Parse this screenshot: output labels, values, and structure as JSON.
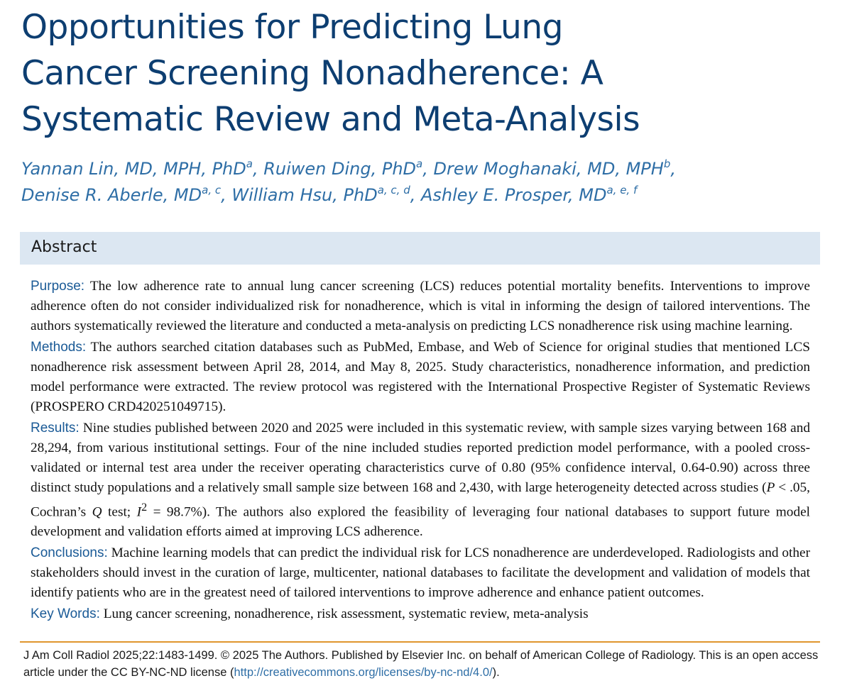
{
  "title_lines": [
    "Opportunities for Predicting Lung",
    "Cancer Screening Nonadherence: A",
    "Systematic Review and Meta-Analysis"
  ],
  "authors": {
    "a1": {
      "name": "Yannan Lin, MD, MPH, PhD",
      "sup": "a"
    },
    "a2": {
      "name": "Ruiwen Ding, PhD",
      "sup": "a"
    },
    "a3": {
      "name": "Drew Moghanaki, MD, MPH",
      "sup": "b"
    },
    "a4": {
      "name": "Denise R. Aberle, MD",
      "sup": "a, c"
    },
    "a5": {
      "name": "William Hsu, PhD",
      "sup": "a, c, d"
    },
    "a6": {
      "name": "Ashley E. Prosper, MD",
      "sup": "a, e, f"
    },
    "separator": ", ",
    "line_end": ","
  },
  "abstract_heading": "Abstract",
  "purpose": {
    "label": "Purpose:",
    "text": "The low adherence rate to annual lung cancer screening (LCS) reduces potential mortality benefits. Interventions to improve adherence often do not consider individualized risk for nonadherence, which is vital in informing the design of tailored interventions. The authors systematically reviewed the literature and conducted a meta-analysis on predicting LCS nonadherence risk using machine learning."
  },
  "methods": {
    "label": "Methods:",
    "text": "The authors searched citation databases such as PubMed, Embase, and Web of Science for original studies that mentioned LCS nonadherence risk assessment between April 28, 2014, and May 8, 2025. Study characteristics, nonadherence information, and prediction model performance were extracted. The review protocol was registered with the International Prospective Register of Systematic Reviews (PROSPERO CRD420251049715)."
  },
  "results": {
    "label": "Results:",
    "text_1": "Nine studies published between 2020 and 2025 were included in this systematic review, with sample sizes varying between 168 and 28,294, from various institutional settings. Four of the nine included studies reported prediction model performance, with a pooled cross-validated or internal test area under the receiver operating characteristics curve of 0.80 (95% confidence interval, 0.64-0.90) across three distinct study populations and a relatively small sample size between 168 and 2,430, with large heterogeneity detected across studies (",
    "p_symbol": "P",
    "text_2": " < .05, Cochran’s ",
    "q_symbol": "Q",
    "text_3": " test; ",
    "i_symbol": "I",
    "i_sup": "2",
    "text_4": " = 98.7%). The authors also explored the feasibility of leveraging four national databases to support future model development and validation efforts aimed at improving LCS adherence."
  },
  "conclusions": {
    "label": "Conclusions:",
    "text": "Machine learning models that can predict the individual risk for LCS nonadherence are underdeveloped. Radiologists and other stakeholders should invest in the curation of large, multicenter, national databases to facilitate the development and validation of models that identify patients who are in the greatest need of tailored interventions to improve adherence and enhance patient outcomes."
  },
  "keywords": {
    "label": "Key Words:",
    "text": "Lung cancer screening, nonadherence, risk assessment, systematic review, meta-analysis"
  },
  "citation": {
    "text": "J Am Coll Radiol 2025;22:1483-1499. © 2025 The Authors. Published by Elsevier Inc. on behalf of American College of Radiology. This is an open access article under the CC BY-NC-ND license (",
    "link": "http://creativecommons.org/licenses/by-nc-nd/4.0/",
    "end": ")."
  },
  "colors": {
    "title": "#0d3e71",
    "authors": "#2e6ea6",
    "section_label": "#1a5a96",
    "abstract_bar": "#dce7f2",
    "rule": "#e0962e"
  }
}
